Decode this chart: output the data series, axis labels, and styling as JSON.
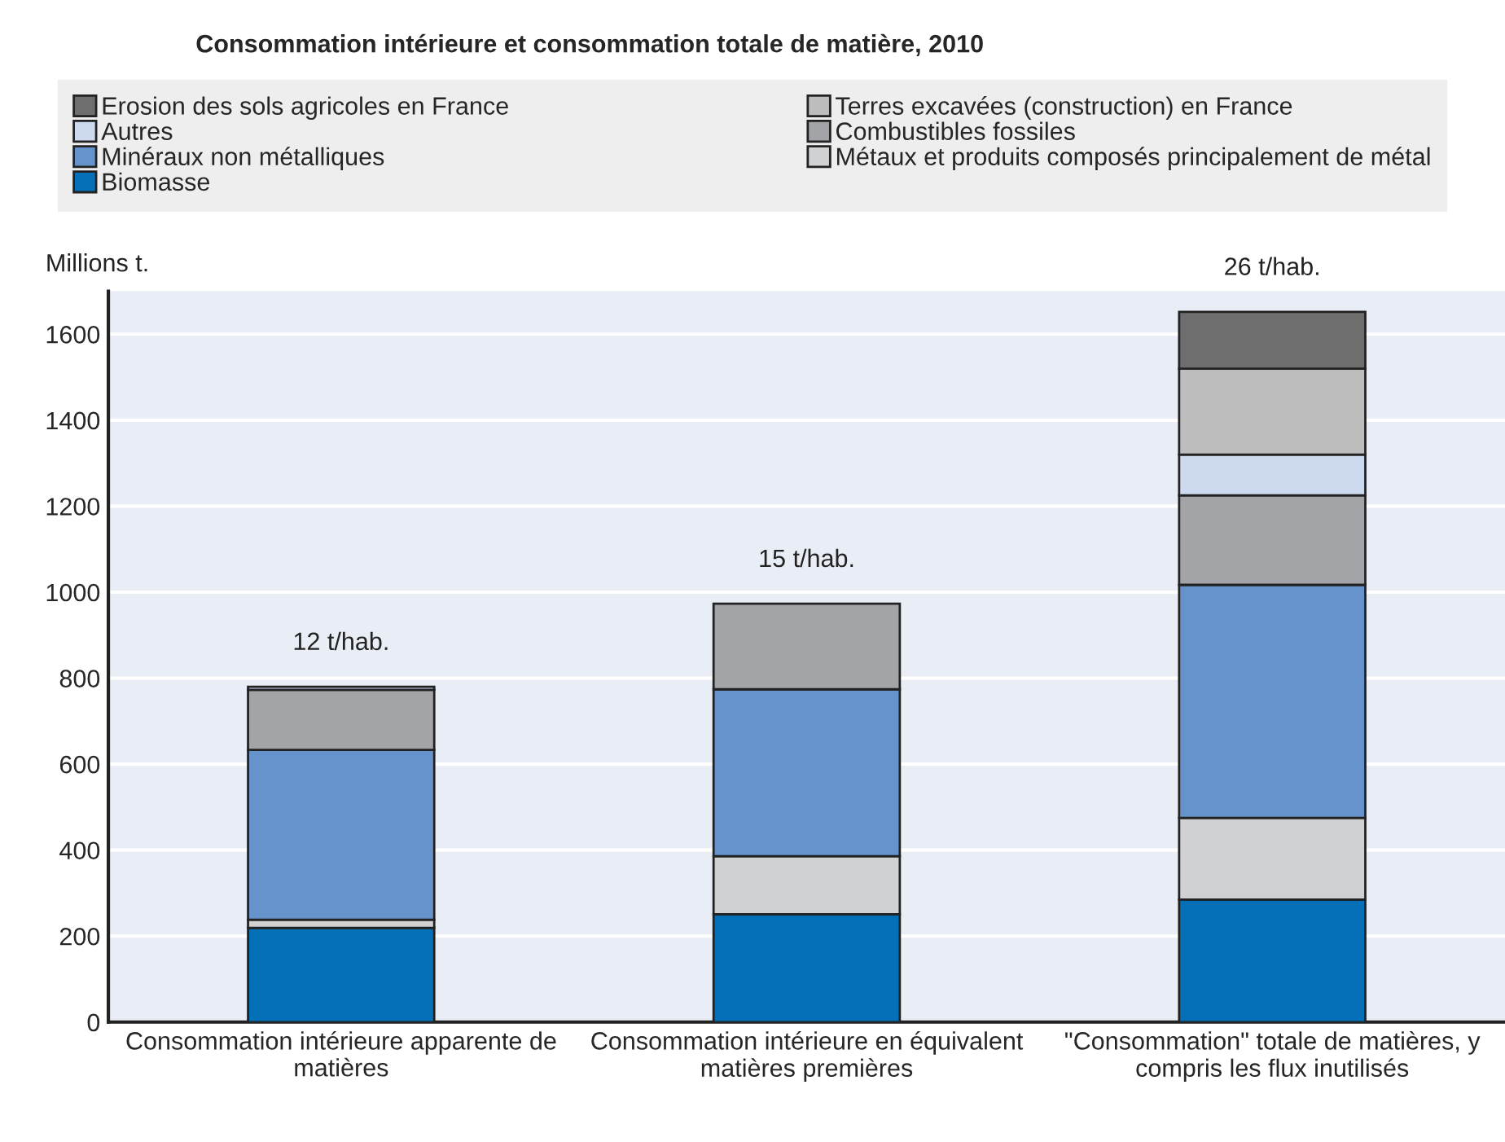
{
  "chart_data": {
    "type": "bar",
    "stacked": true,
    "title": "Consommation intérieure et consommation totale de matière, 2010",
    "ylabel": "Millions t.",
    "categories": [
      "Consommation intérieure apparente de\nmatières",
      "Consommation intérieure en équivalent\nmatières premières",
      "\"Consommation\" totale de matières, y\ncompris les flux inutilisés"
    ],
    "series": [
      {
        "name": "Biomasse",
        "color": "#0570b8",
        "values": [
          219,
          251,
          285
        ]
      },
      {
        "name": "Métaux et produits composés principalement de métal",
        "color": "#d0d1d3",
        "values": [
          19,
          135,
          190
        ]
      },
      {
        "name": "Minéraux non métalliques",
        "color": "#6693cc",
        "values": [
          395,
          388,
          542
        ]
      },
      {
        "name": "Combustibles fossiles",
        "color": "#a3a4a8",
        "values": [
          140,
          199,
          208
        ]
      },
      {
        "name": "Autres",
        "color": "#ccd9ee",
        "values": [
          7,
          0,
          95
        ]
      },
      {
        "name": "Terres excavées (construction) en France",
        "color": "#bdbdbd",
        "values": [
          0,
          0,
          200
        ]
      },
      {
        "name": "Erosion des sols agricoles en France",
        "color": "#6e6e6e",
        "values": [
          0,
          0,
          132
        ]
      }
    ],
    "annotations": [
      {
        "text": "12 t/hab.",
        "x": "Consommation intérieure apparente de\nmatières",
        "y": 780
      },
      {
        "text": "15 t/hab.",
        "x": "Consommation intérieure en équivalent\nmatières premières",
        "y": 973
      },
      {
        "text": "26 t/hab.",
        "x": "\"Consommation\" totale de matières, y\ncompris les flux inutilisés",
        "y": 1652
      }
    ],
    "ylim": [
      0,
      1700
    ],
    "yticks": [
      0,
      200,
      400,
      600,
      800,
      1000,
      1200,
      1400,
      1600
    ],
    "grid": "y",
    "legend": "top"
  }
}
